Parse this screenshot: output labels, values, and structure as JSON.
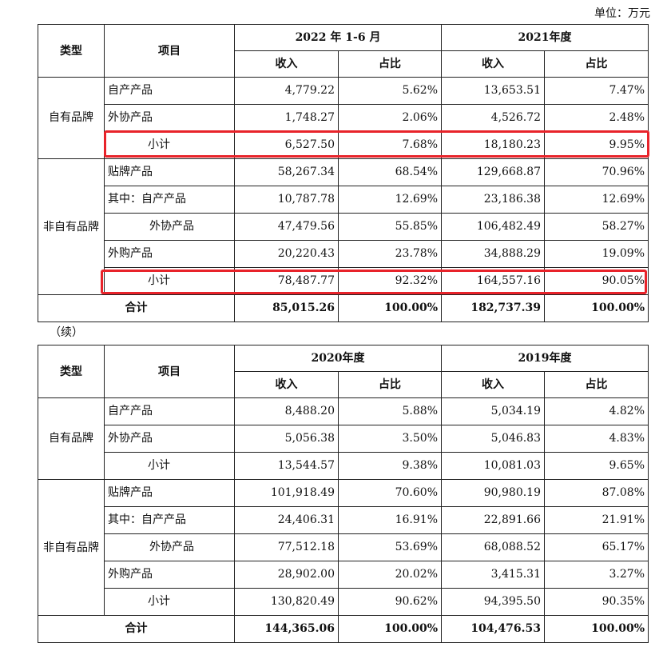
{
  "unit_label": "单位：万元",
  "continued_label": "（续）",
  "header": {
    "type": "类型",
    "item": "项目",
    "income": "收入",
    "share": "占比"
  },
  "table1": {
    "period_a": "2022 年 1-6 月",
    "period_b": "2021年度",
    "own_brand": {
      "category": "自有品牌",
      "rows": [
        {
          "item": "自产产品",
          "inc_a": "4,779.22",
          "pct_a": "5.62%",
          "inc_b": "13,653.51",
          "pct_b": "7.47%"
        },
        {
          "item": "外协产品",
          "inc_a": "1,748.27",
          "pct_a": "2.06%",
          "inc_b": "4,526.72",
          "pct_b": "2.48%"
        },
        {
          "item": "小计",
          "inc_a": "6,527.50",
          "pct_a": "7.68%",
          "inc_b": "18,180.23",
          "pct_b": "9.95%"
        }
      ]
    },
    "non_own_brand": {
      "category": "非自有品牌",
      "rows": [
        {
          "item": "贴牌产品",
          "inc_a": "58,267.34",
          "pct_a": "68.54%",
          "inc_b": "129,668.87",
          "pct_b": "70.96%"
        },
        {
          "item": "其中：自产产品",
          "inc_a": "10,787.78",
          "pct_a": "12.69%",
          "inc_b": "23,186.38",
          "pct_b": "12.69%"
        },
        {
          "item": "外协产品",
          "inc_a": "47,479.56",
          "pct_a": "55.85%",
          "inc_b": "106,482.49",
          "pct_b": "58.27%"
        },
        {
          "item": "外购产品",
          "inc_a": "20,220.43",
          "pct_a": "23.78%",
          "inc_b": "34,888.29",
          "pct_b": "19.09%"
        },
        {
          "item": "小计",
          "inc_a": "78,487.77",
          "pct_a": "92.32%",
          "inc_b": "164,557.16",
          "pct_b": "90.05%"
        }
      ]
    },
    "total": {
      "label": "合计",
      "inc_a": "85,015.26",
      "pct_a": "100.00%",
      "inc_b": "182,737.39",
      "pct_b": "100.00%"
    }
  },
  "table2": {
    "period_a": "2020年度",
    "period_b": "2019年度",
    "own_brand": {
      "category": "自有品牌",
      "rows": [
        {
          "item": "自产产品",
          "inc_a": "8,488.20",
          "pct_a": "5.88%",
          "inc_b": "5,034.19",
          "pct_b": "4.82%"
        },
        {
          "item": "外协产品",
          "inc_a": "5,056.38",
          "pct_a": "3.50%",
          "inc_b": "5,046.83",
          "pct_b": "4.83%"
        },
        {
          "item": "小计",
          "inc_a": "13,544.57",
          "pct_a": "9.38%",
          "inc_b": "10,081.03",
          "pct_b": "9.65%"
        }
      ]
    },
    "non_own_brand": {
      "category": "非自有品牌",
      "rows": [
        {
          "item": "贴牌产品",
          "inc_a": "101,918.49",
          "pct_a": "70.60%",
          "inc_b": "90,980.19",
          "pct_b": "87.08%"
        },
        {
          "item": "其中：自产产品",
          "inc_a": "24,406.31",
          "pct_a": "16.91%",
          "inc_b": "22,891.66",
          "pct_b": "21.91%"
        },
        {
          "item": "外协产品",
          "inc_a": "77,512.18",
          "pct_a": "53.69%",
          "inc_b": "68,088.52",
          "pct_b": "65.17%"
        },
        {
          "item": "外购产品",
          "inc_a": "28,902.00",
          "pct_a": "20.02%",
          "inc_b": "3,415.31",
          "pct_b": "3.27%"
        },
        {
          "item": "小计",
          "inc_a": "130,820.49",
          "pct_a": "90.62%",
          "inc_b": "94,395.50",
          "pct_b": "90.35%"
        }
      ]
    },
    "total": {
      "label": "合计",
      "inc_a": "144,365.06",
      "pct_a": "100.00%",
      "inc_b": "104,476.53",
      "pct_b": "100.00%"
    }
  },
  "highlight_color": "#e8232a"
}
